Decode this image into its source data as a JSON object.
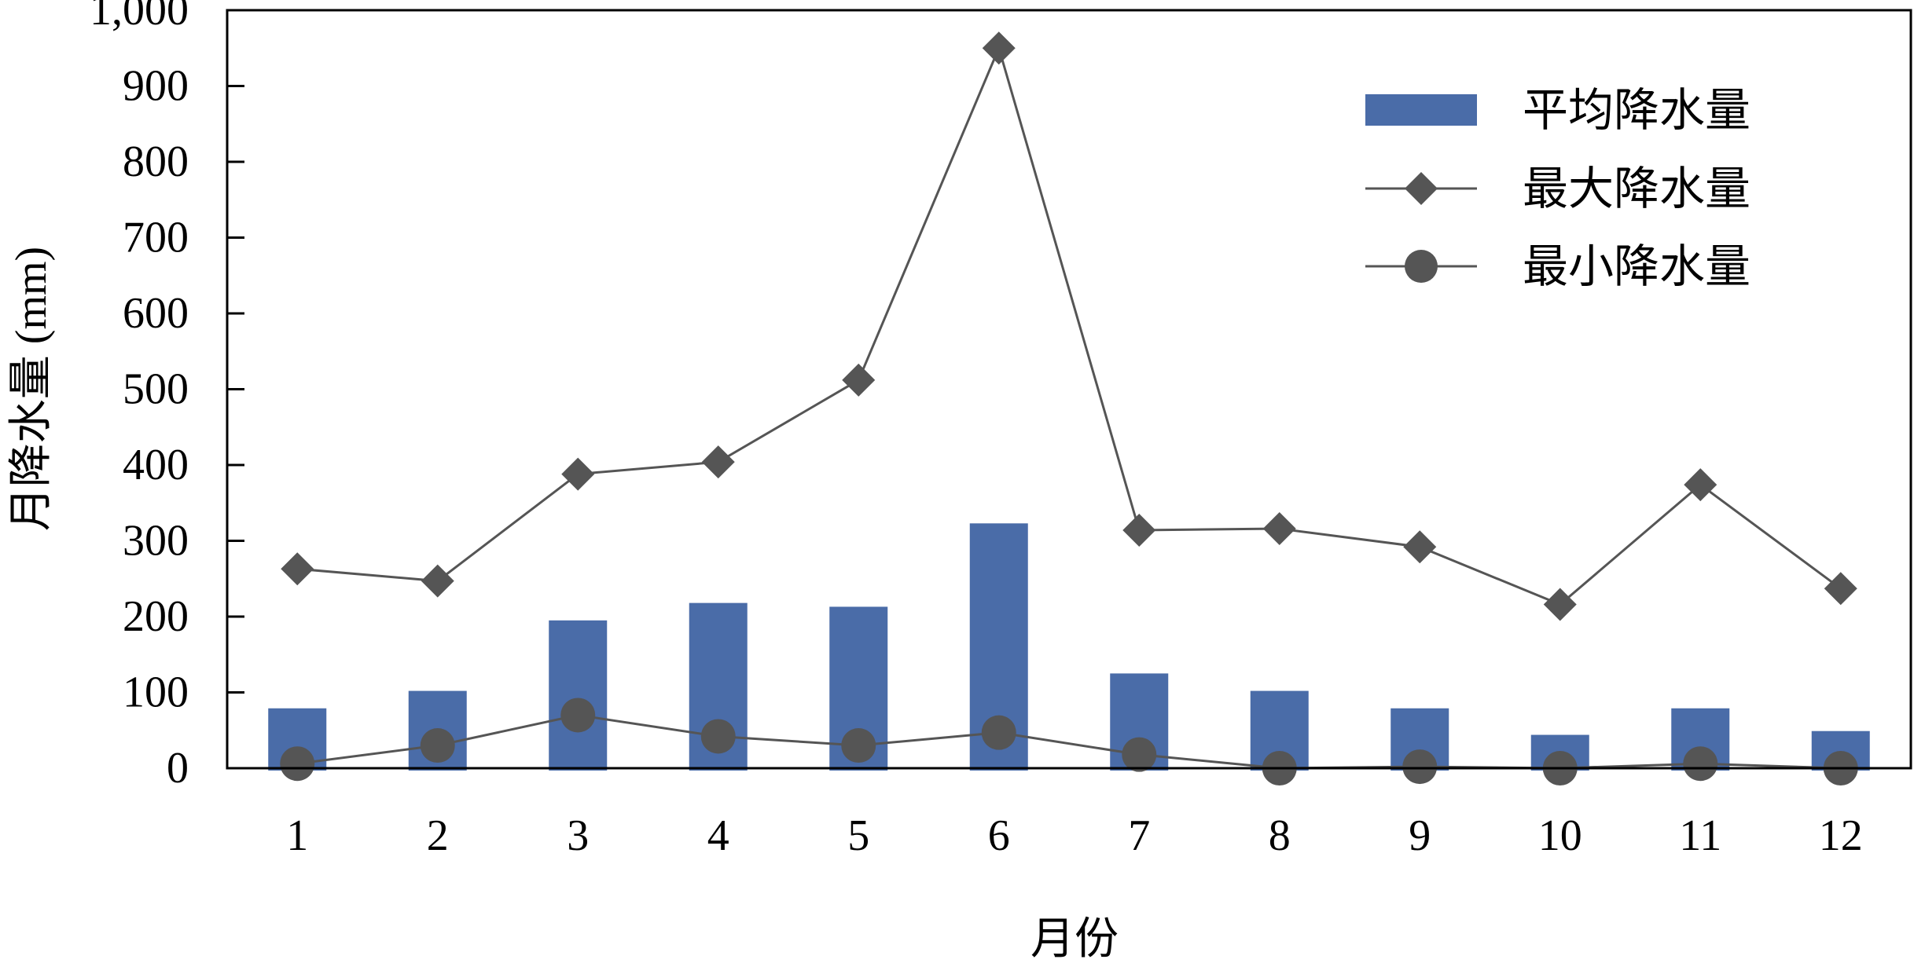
{
  "chart_data": {
    "type": "bar",
    "categories": [
      "1",
      "2",
      "3",
      "4",
      "5",
      "6",
      "7",
      "8",
      "9",
      "10",
      "11",
      "12"
    ],
    "xlabel": "月份",
    "ylabel": "月降水量 (mm)",
    "ylim": [
      0,
      1000
    ],
    "yticks": [
      "0",
      "100",
      "200",
      "300",
      "400",
      "500",
      "600",
      "700",
      "800",
      "900",
      "1,000"
    ],
    "grid": false,
    "legend_position": "top-right",
    "series": [
      {
        "name": "平均降水量",
        "type": "bar",
        "marker": "none",
        "color": "#4a6ca8",
        "values": [
          79,
          102,
          195,
          218,
          213,
          323,
          125,
          102,
          79,
          44,
          79,
          49
        ]
      },
      {
        "name": "最大降水量",
        "type": "line",
        "marker": "diamond",
        "color": "#555555",
        "values": [
          263,
          247,
          388,
          404,
          512,
          950,
          314,
          316,
          292,
          216,
          374,
          237
        ]
      },
      {
        "name": "最小降水量",
        "type": "line",
        "marker": "circle",
        "color": "#555555",
        "values": [
          6,
          30,
          70,
          42,
          30,
          47,
          18,
          0,
          2,
          0,
          6,
          0
        ]
      }
    ]
  }
}
